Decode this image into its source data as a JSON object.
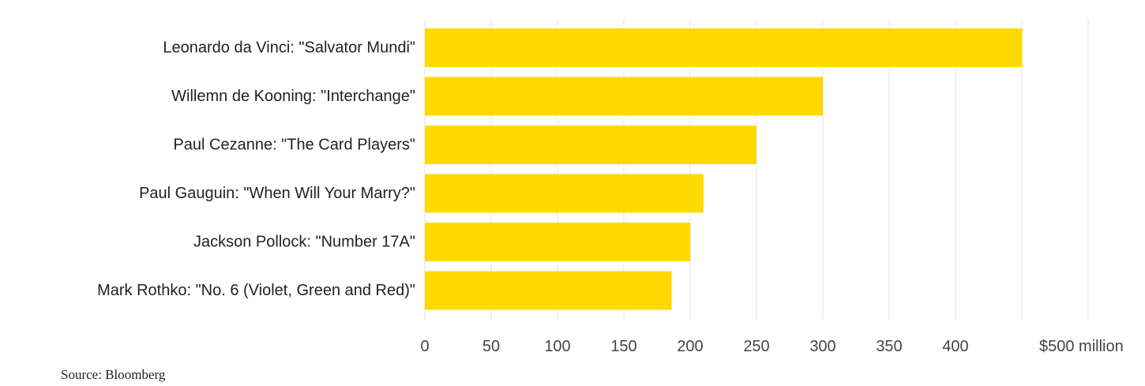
{
  "chart_data": {
    "type": "bar",
    "orientation": "horizontal",
    "categories": [
      "Leonardo da Vinci: \"Salvator Mundi\"",
      "Willemn de Kooning: \"Interchange\"",
      "Paul Cezanne: \"The Card Players\"",
      "Paul Gauguin: \"When Will Your Marry?\"",
      "Jackson Pollock: \"Number 17A\"",
      "Mark Rothko: \"No. 6 (Violet, Green and Red)\""
    ],
    "values": [
      450.3,
      300,
      250,
      210,
      200,
      186
    ],
    "xticks": [
      "0",
      "50",
      "100",
      "150",
      "200",
      "250",
      "300",
      "350",
      "400",
      "$500 million"
    ],
    "xtick_values": [
      0,
      50,
      100,
      150,
      200,
      250,
      300,
      350,
      400,
      500
    ],
    "xlim": [
      0,
      500
    ],
    "grid": true,
    "bar_color": "#FFD900",
    "grid_color": "#e3e3e3"
  },
  "source": "Source: Bloomberg"
}
